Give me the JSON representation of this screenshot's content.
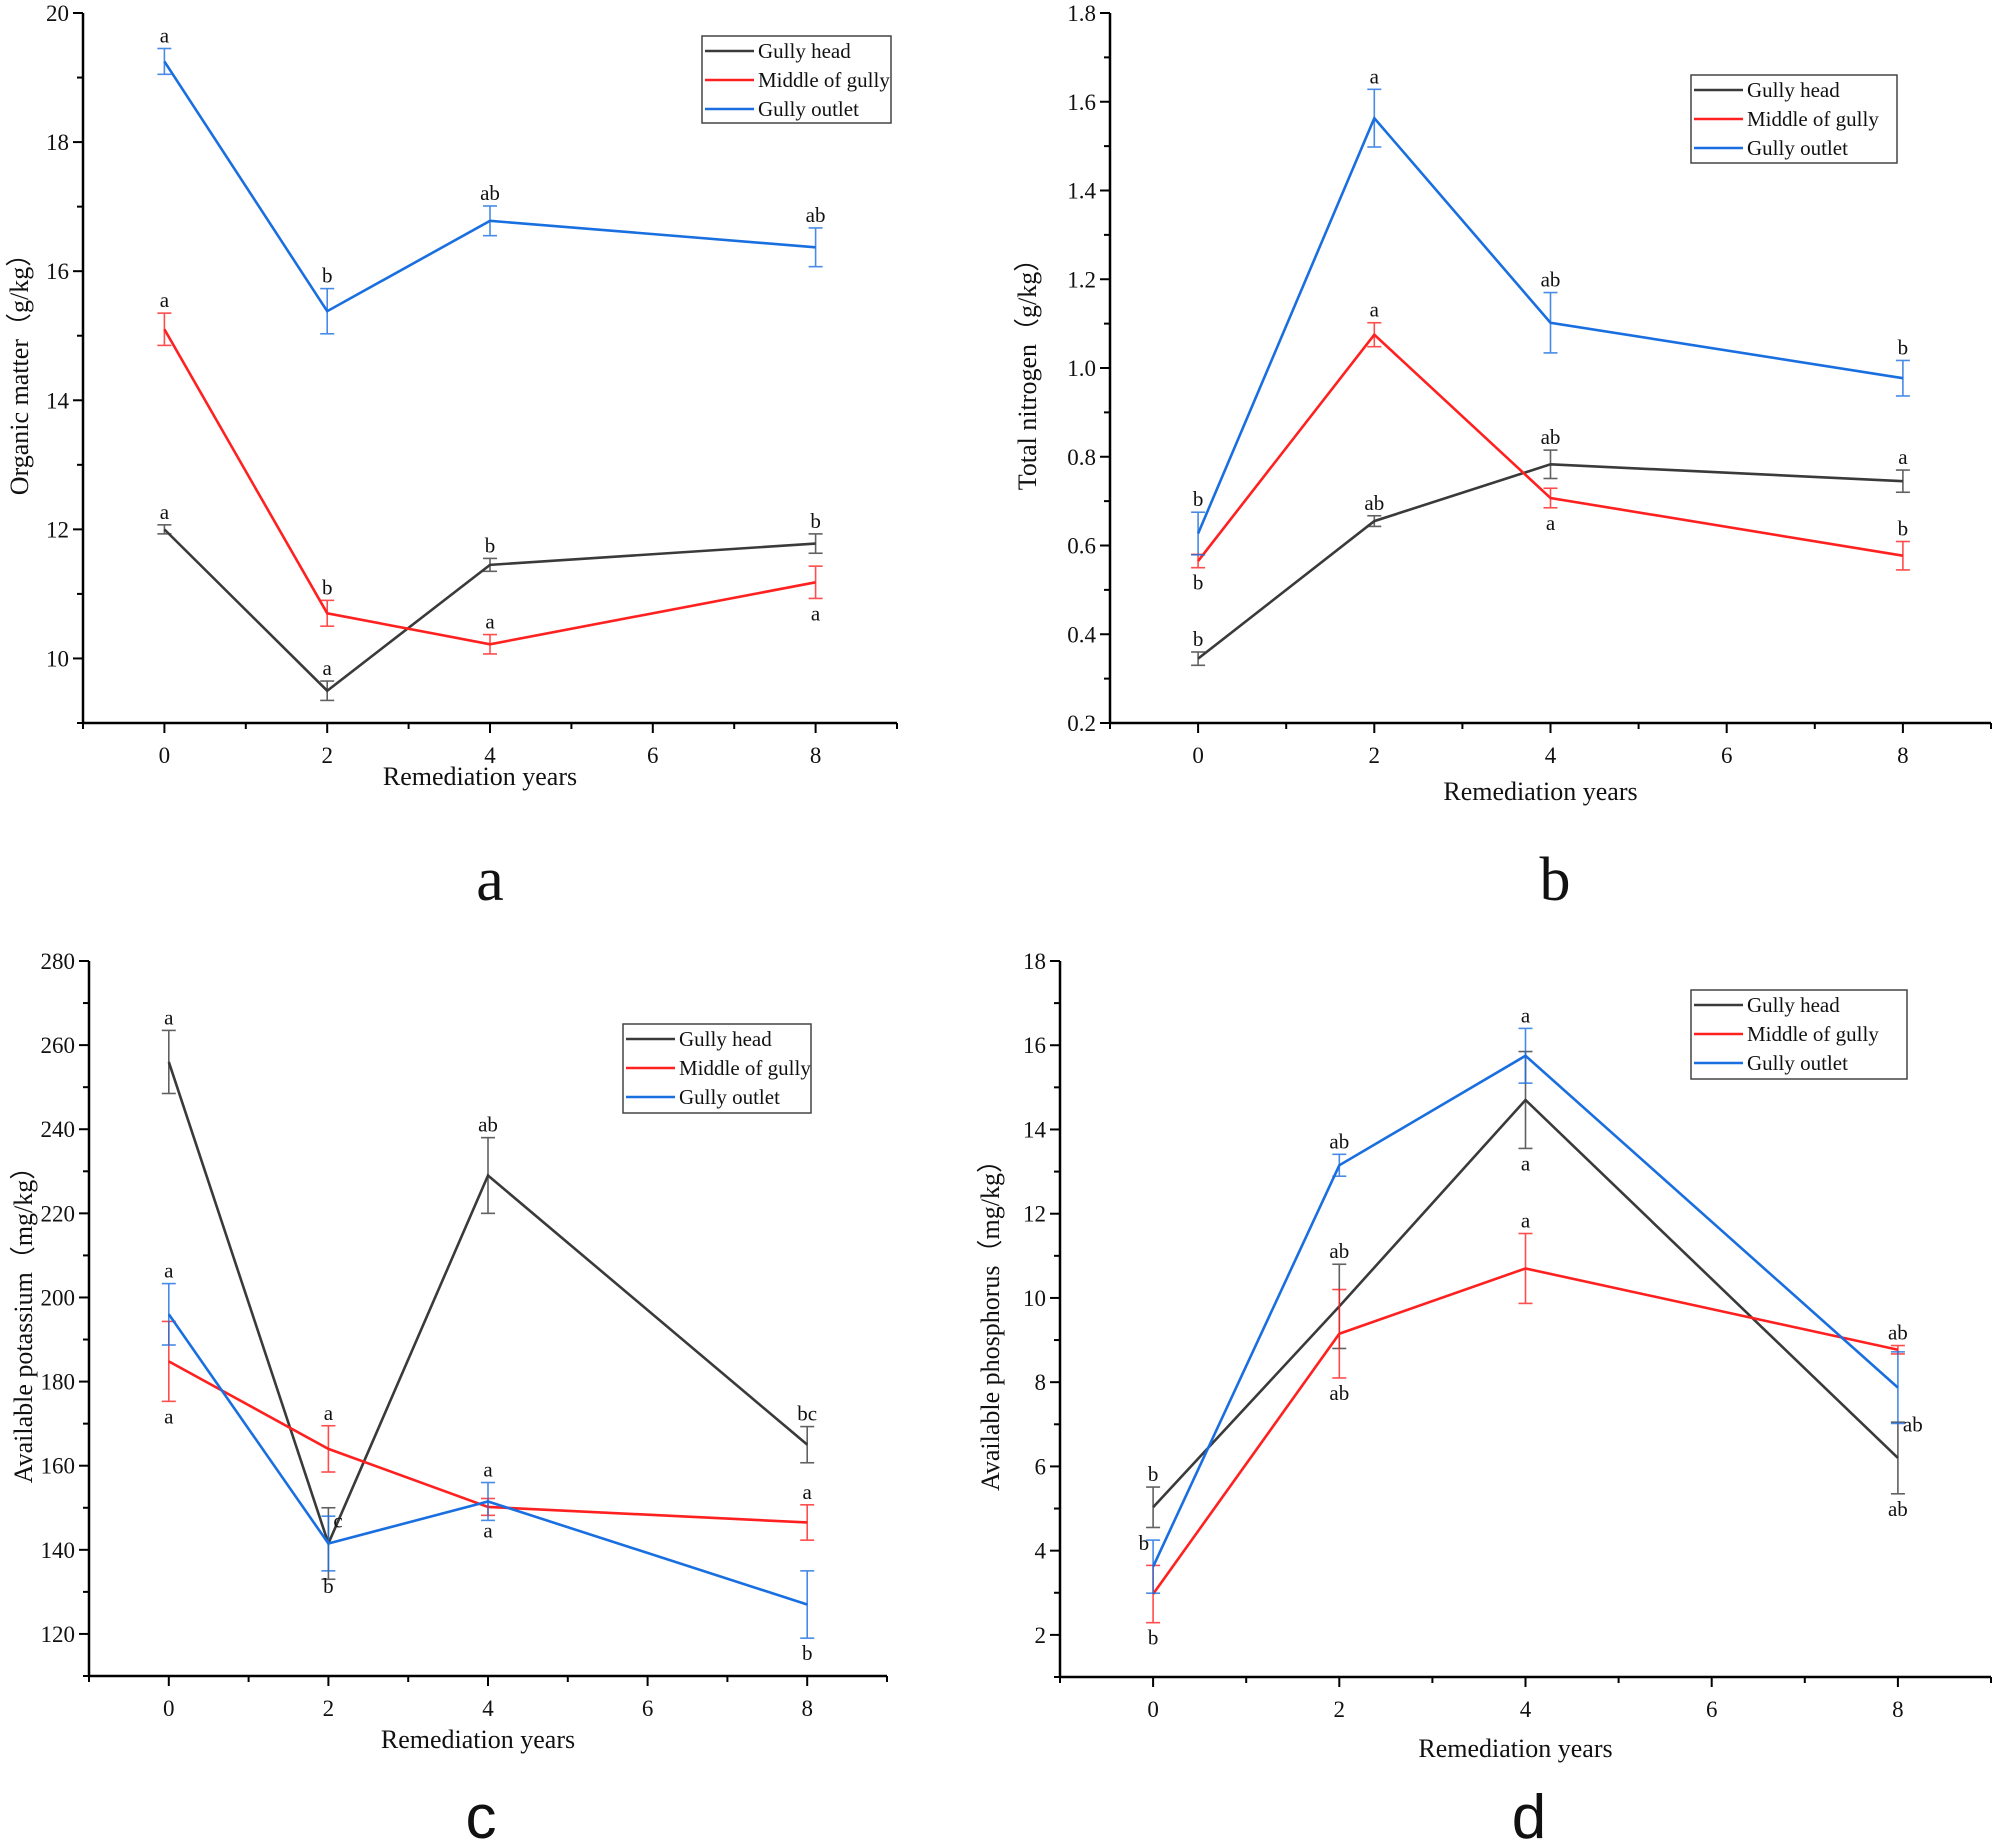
{
  "chart_data": [
    {
      "type": "line",
      "panel_label": "a",
      "xlabel": "Remediation years",
      "ylabel": "Organic matter（g/kg）",
      "x": [
        0,
        2,
        4,
        8
      ],
      "xlim": [
        -1,
        9
      ],
      "ylim": [
        9,
        20
      ],
      "xticks": [
        0,
        2,
        4,
        6,
        8
      ],
      "yticks": [
        10,
        12,
        14,
        16,
        18,
        20
      ],
      "legend_position": "top-right",
      "series": [
        {
          "name": "Gully head",
          "color": "#3a3a3a",
          "values": [
            12.0,
            9.5,
            11.45,
            11.78
          ],
          "errors": [
            0.07,
            0.15,
            0.1,
            0.15
          ],
          "letters": [
            {
              "text": "a",
              "pos": "above"
            },
            {
              "text": "a",
              "pos": "above"
            },
            {
              "text": "b",
              "pos": "above"
            },
            {
              "text": "b",
              "pos": "above"
            }
          ]
        },
        {
          "name": "Middle of gully",
          "color": "#ff2020",
          "values": [
            15.1,
            10.7,
            10.22,
            11.18
          ],
          "errors": [
            0.25,
            0.2,
            0.15,
            0.25
          ],
          "letters": [
            {
              "text": "a",
              "pos": "above"
            },
            {
              "text": "b",
              "pos": "above"
            },
            {
              "text": "a",
              "pos": "above"
            },
            {
              "text": "a",
              "pos": "below"
            }
          ]
        },
        {
          "name": "Gully outlet",
          "color": "#1a6fe0",
          "values": [
            19.25,
            15.38,
            16.78,
            16.37
          ],
          "errors": [
            0.2,
            0.35,
            0.23,
            0.3
          ],
          "letters": [
            {
              "text": "a",
              "pos": "above"
            },
            {
              "text": "b",
              "pos": "above"
            },
            {
              "text": "ab",
              "pos": "above"
            },
            {
              "text": "ab",
              "pos": "above"
            }
          ]
        }
      ]
    },
    {
      "type": "line",
      "panel_label": "b",
      "xlabel": "Remediation years",
      "ylabel": "Total nitrogen（g/kg）",
      "x": [
        0,
        2,
        4,
        8
      ],
      "xlim": [
        -1,
        9
      ],
      "ylim": [
        0.2,
        1.8
      ],
      "xticks": [
        0,
        2,
        4,
        6,
        8
      ],
      "yticks": [
        "0.2",
        "0.4",
        "0.6",
        "0.8",
        "1.0",
        "1.2",
        "1.4",
        "1.6",
        "1.8"
      ],
      "legend_position": "top-right",
      "series": [
        {
          "name": "Gully head",
          "color": "#3a3a3a",
          "values": [
            0.345,
            0.655,
            0.783,
            0.745
          ],
          "errors": [
            0.015,
            0.012,
            0.032,
            0.025
          ],
          "letters": [
            {
              "text": "b",
              "pos": "above"
            },
            {
              "text": "ab",
              "pos": "above"
            },
            {
              "text": "ab",
              "pos": "above"
            },
            {
              "text": "a",
              "pos": "above"
            }
          ]
        },
        {
          "name": "Middle of gully",
          "color": "#ff2020",
          "values": [
            0.565,
            1.075,
            0.707,
            0.577
          ],
          "errors": [
            0.015,
            0.027,
            0.022,
            0.032
          ],
          "letters": [
            {
              "text": "b",
              "pos": "below"
            },
            {
              "text": "a",
              "pos": "above"
            },
            {
              "text": "a",
              "pos": "below"
            },
            {
              "text": "b",
              "pos": "above"
            }
          ]
        },
        {
          "name": "Gully outlet",
          "color": "#1a6fe0",
          "values": [
            0.627,
            1.563,
            1.102,
            0.977
          ],
          "errors": [
            0.048,
            0.065,
            0.068,
            0.04
          ],
          "letters": [
            {
              "text": "b",
              "pos": "above"
            },
            {
              "text": "a",
              "pos": "above"
            },
            {
              "text": "ab",
              "pos": "above"
            },
            {
              "text": "b",
              "pos": "above"
            }
          ]
        }
      ]
    },
    {
      "type": "line",
      "panel_label": "c",
      "xlabel": "Remediation years",
      "ylabel": "Available potassium（mg/kg）",
      "x": [
        0,
        2,
        4,
        8
      ],
      "xlim": [
        -1,
        9
      ],
      "ylim": [
        110,
        280
      ],
      "xticks": [
        0,
        2,
        4,
        6,
        8
      ],
      "yticks": [
        120,
        140,
        160,
        180,
        200,
        220,
        240,
        260,
        280
      ],
      "legend_position": "top-right",
      "series": [
        {
          "name": "Gully head",
          "color": "#3a3a3a",
          "values": [
            256,
            141.5,
            229,
            165
          ],
          "errors": [
            7.5,
            8.5,
            9,
            4.3
          ],
          "letters": [
            {
              "text": "a",
              "pos": "above"
            },
            {
              "text": "c",
              "pos": "right"
            },
            {
              "text": "ab",
              "pos": "above"
            },
            {
              "text": "bc",
              "pos": "above"
            }
          ]
        },
        {
          "name": "Middle of gully",
          "color": "#ff2020",
          "values": [
            184.8,
            164,
            150.2,
            146.5
          ],
          "errors": [
            9.5,
            5.5,
            2,
            4.2
          ],
          "letters": [
            {
              "text": "a",
              "pos": "below"
            },
            {
              "text": "a",
              "pos": "above"
            },
            {
              "text": "a",
              "pos": "below"
            },
            {
              "text": "a",
              "pos": "above"
            }
          ]
        },
        {
          "name": "Gully outlet",
          "color": "#1a6fe0",
          "values": [
            196,
            141.5,
            151.5,
            127
          ],
          "errors": [
            7.3,
            6.5,
            4.5,
            8
          ],
          "letters": [
            {
              "text": "a",
              "pos": "above"
            },
            {
              "text": "b",
              "pos": "below"
            },
            {
              "text": "a",
              "pos": "above"
            },
            {
              "text": "b",
              "pos": "below"
            }
          ]
        }
      ]
    },
    {
      "type": "line",
      "panel_label": "d",
      "xlabel": "Remediation years",
      "ylabel": "Available phosphorus（mg/kg）",
      "x": [
        0,
        2,
        4,
        8
      ],
      "xlim": [
        -1,
        9
      ],
      "ylim": [
        1,
        18
      ],
      "xticks": [
        0,
        2,
        4,
        6,
        8
      ],
      "yticks": [
        2,
        4,
        6,
        8,
        10,
        12,
        14,
        16,
        18
      ],
      "legend_position": "top-right",
      "series": [
        {
          "name": "Gully head",
          "color": "#3a3a3a",
          "values": [
            5.03,
            9.8,
            14.7,
            6.2
          ],
          "errors": [
            0.48,
            1.0,
            1.15,
            0.85
          ],
          "letters": [
            {
              "text": "b",
              "pos": "above"
            },
            {
              "text": "ab",
              "pos": "above"
            },
            {
              "text": "a",
              "pos": "below"
            },
            {
              "text": "ab",
              "pos": "below"
            }
          ]
        },
        {
          "name": "Middle of gully",
          "color": "#ff2020",
          "values": [
            2.97,
            9.15,
            10.7,
            8.77
          ],
          "errors": [
            0.68,
            1.05,
            0.83,
            0.1
          ],
          "letters": [
            {
              "text": "b",
              "pos": "below"
            },
            {
              "text": "ab",
              "pos": "below"
            },
            {
              "text": "a",
              "pos": "above"
            },
            {
              "text": "ab",
              "pos": "above"
            }
          ]
        },
        {
          "name": "Gully outlet",
          "color": "#1a6fe0",
          "values": [
            3.62,
            13.15,
            15.75,
            7.87
          ],
          "errors": [
            0.63,
            0.26,
            0.65,
            0.85
          ],
          "letters": [
            {
              "text": "b",
              "pos": "left"
            },
            {
              "text": "ab",
              "pos": "above"
            },
            {
              "text": "a",
              "pos": "above"
            },
            {
              "text": "ab",
              "pos": "right"
            }
          ]
        }
      ]
    }
  ]
}
